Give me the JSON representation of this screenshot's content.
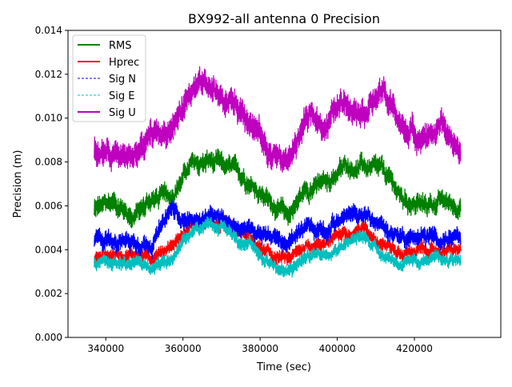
{
  "chart_data": {
    "type": "line",
    "title": "BX992-all antenna 0 Precision",
    "xlabel": "Time (sec)",
    "ylabel": "Precision (m)",
    "xlim": [
      330200,
      442400
    ],
    "ylim": [
      0,
      0.014
    ],
    "xticks": [
      340000,
      360000,
      380000,
      400000,
      420000
    ],
    "xtick_labels": [
      "340000",
      "360000",
      "380000",
      "400000",
      "420000"
    ],
    "yticks": [
      0,
      0.002,
      0.004,
      0.006,
      0.008,
      0.01,
      0.012,
      0.014
    ],
    "ytick_labels": [
      "0.000",
      "0.002",
      "0.004",
      "0.006",
      "0.008",
      "0.010",
      "0.012",
      "0.014"
    ],
    "grid": false,
    "legend_placement": "top-left",
    "x": [
      337000,
      342000,
      347000,
      352000,
      357000,
      362000,
      367000,
      372000,
      377000,
      382000,
      387000,
      392000,
      397000,
      402000,
      407000,
      412000,
      417000,
      422000,
      427000,
      432000
    ],
    "series": [
      {
        "name": "RMS",
        "color": "#008000",
        "style": "solid",
        "spread": 0.0009,
        "values": [
          0.0058,
          0.0062,
          0.0055,
          0.0063,
          0.0065,
          0.0078,
          0.008,
          0.0077,
          0.0072,
          0.0063,
          0.0055,
          0.0068,
          0.007,
          0.0078,
          0.0078,
          0.0075,
          0.0063,
          0.006,
          0.0062,
          0.006
        ]
      },
      {
        "name": "Hprec",
        "color": "#ff0000",
        "style": "solid",
        "spread": 0.0006,
        "values": [
          0.0036,
          0.0038,
          0.0038,
          0.0037,
          0.0042,
          0.005,
          0.0053,
          0.005,
          0.0045,
          0.0038,
          0.0035,
          0.0042,
          0.0043,
          0.0048,
          0.005,
          0.0043,
          0.0038,
          0.004,
          0.0039,
          0.004
        ]
      },
      {
        "name": "Sig N",
        "color": "#0000ff",
        "style": "dashed",
        "spread": 0.0008,
        "values": [
          0.0044,
          0.0045,
          0.0044,
          0.0043,
          0.0058,
          0.0053,
          0.0055,
          0.0052,
          0.005,
          0.0048,
          0.0042,
          0.005,
          0.005,
          0.0055,
          0.0056,
          0.005,
          0.0046,
          0.0046,
          0.0045,
          0.0044
        ]
      },
      {
        "name": "Sig E",
        "color": "#00bfbf",
        "style": "dashed",
        "spread": 0.0006,
        "values": [
          0.0033,
          0.0036,
          0.0035,
          0.0032,
          0.0035,
          0.0047,
          0.0053,
          0.0048,
          0.0042,
          0.0035,
          0.0029,
          0.0037,
          0.0039,
          0.0043,
          0.0046,
          0.0038,
          0.0033,
          0.0035,
          0.0035,
          0.0036
        ]
      },
      {
        "name": "Sig U",
        "color": "#bf00bf",
        "style": "solid",
        "spread": 0.0012,
        "values": [
          0.0085,
          0.0082,
          0.0082,
          0.0092,
          0.0095,
          0.0112,
          0.0113,
          0.0108,
          0.0102,
          0.0085,
          0.008,
          0.01,
          0.0098,
          0.0108,
          0.0105,
          0.0112,
          0.0095,
          0.0092,
          0.0095,
          0.0085
        ]
      }
    ]
  }
}
